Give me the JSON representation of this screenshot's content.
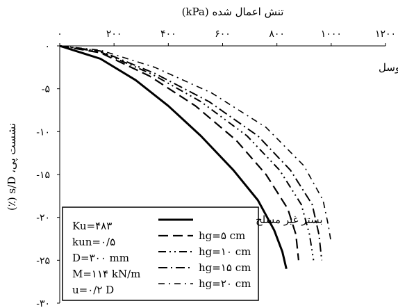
{
  "chart_data": {
    "type": "line",
    "title": "",
    "xlabel": "تنش اعمال شده (kPa)",
    "ylabel": "نشست پی، s/D (٪)",
    "annotation": "بستر مسلح با ژئوسل",
    "xlim": [
      0,
      1200
    ],
    "ylim": [
      -30,
      0
    ],
    "x_axis_position": "top",
    "x_ticks": [
      0,
      200,
      400,
      600,
      800,
      1000,
      1200
    ],
    "x_tick_labels": [
      "۰",
      "۲۰۰",
      "۴۰۰",
      "۶۰۰",
      "۸۰۰",
      "۱۰۰۰",
      "۱۲۰۰"
    ],
    "y_ticks": [
      0,
      -5,
      -10,
      -15,
      -20,
      -25,
      -30
    ],
    "y_tick_labels": [
      "۰",
      "-۵",
      "-۱۰",
      "-۱۵",
      "-۲۰",
      "-۲۵",
      "-۳۰"
    ],
    "grid": false,
    "legend_position": "bottom-center",
    "parameters": [
      {
        "text": "Ku=۴۸۳"
      },
      {
        "text": "kun=۰/۵"
      },
      {
        "text": "D=۳۰۰ mm"
      },
      {
        "text": "M=۱۱۴ kN/m"
      },
      {
        "text": "u=۰/۲ D"
      }
    ],
    "series": [
      {
        "name": "بستر غیر مسلح",
        "style": "solid",
        "width": 3,
        "x": [
          0,
          150,
          280,
          400,
          520,
          640,
          730,
          790,
          820,
          835
        ],
        "y": [
          0,
          -1.5,
          -4,
          -7,
          -10.5,
          -14.5,
          -18,
          -21.5,
          -24,
          -26
        ]
      },
      {
        "name": "hg=۵ cm",
        "style": "dash",
        "width": 2.2,
        "x": [
          0,
          150,
          330,
          500,
          650,
          760,
          840,
          870,
          880
        ],
        "y": [
          0,
          -0.8,
          -3.5,
          -7,
          -11,
          -15,
          -19,
          -22,
          -25
        ]
      },
      {
        "name": "hg=۱۰ cm",
        "style": "dashdotdot",
        "width": 2,
        "x": [
          0,
          150,
          340,
          520,
          690,
          810,
          890,
          920,
          935
        ],
        "y": [
          0,
          -0.7,
          -3.3,
          -6.5,
          -10.5,
          -14.5,
          -18.5,
          -22,
          -25
        ]
      },
      {
        "name": "hg=۱۵ cm",
        "style": "dashdot",
        "width": 2,
        "x": [
          0,
          150,
          350,
          550,
          730,
          850,
          930,
          955,
          965
        ],
        "y": [
          0,
          -0.6,
          -3.2,
          -6.5,
          -10.5,
          -14.5,
          -18.5,
          -22,
          -25
        ]
      },
      {
        "name": "hg=۲۰ cm",
        "style": "dashdot",
        "width": 1.6,
        "x": [
          0,
          150,
          350,
          560,
          760,
          900,
          970,
          990,
          1000
        ],
        "y": [
          0,
          -0.5,
          -2.5,
          -5.5,
          -9.5,
          -14,
          -18,
          -21,
          -23
        ]
      }
    ]
  }
}
